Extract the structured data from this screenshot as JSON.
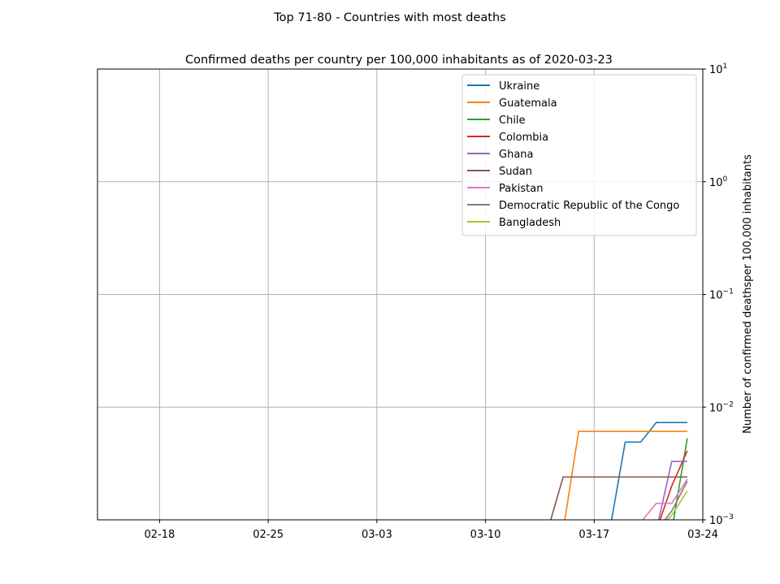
{
  "figure": {
    "suptitle": "Top 71-80 - Countries with most deaths"
  },
  "chart_data": {
    "type": "line",
    "title": "Confirmed deaths per country per 100,000 inhabitants as of 2020-03-23",
    "xlabel": "",
    "ylabel": "Number of confirmed deathsper 100,000 inhabitants",
    "y_scale": "log",
    "y_axis_side": "right",
    "xlim": [
      "2020-02-14",
      "2020-03-24"
    ],
    "ylim": [
      0.001,
      10
    ],
    "x_ticks": [
      {
        "date": "2020-02-18",
        "label": "02-18"
      },
      {
        "date": "2020-02-25",
        "label": "02-25"
      },
      {
        "date": "2020-03-03",
        "label": "03-03"
      },
      {
        "date": "2020-03-10",
        "label": "03-10"
      },
      {
        "date": "2020-03-17",
        "label": "03-17"
      },
      {
        "date": "2020-03-24",
        "label": "03-24"
      }
    ],
    "y_ticks": [
      {
        "value": 0.001,
        "base": "10",
        "exp": "−3"
      },
      {
        "value": 0.01,
        "base": "10",
        "exp": "−2"
      },
      {
        "value": 0.1,
        "base": "10",
        "exp": "−1"
      },
      {
        "value": 1,
        "base": "10",
        "exp": "0"
      },
      {
        "value": 10,
        "base": "10",
        "exp": "1"
      }
    ],
    "grid": true,
    "legend_position": "top-right",
    "series": [
      {
        "name": "Ukraine",
        "color": "#1f77b4",
        "points": [
          {
            "x": "2020-03-18",
            "y": 0.0008
          },
          {
            "x": "2020-03-19",
            "y": 0.0049
          },
          {
            "x": "2020-03-20",
            "y": 0.0049
          },
          {
            "x": "2020-03-21",
            "y": 0.0073
          },
          {
            "x": "2020-03-22",
            "y": 0.0073
          },
          {
            "x": "2020-03-23",
            "y": 0.0073
          }
        ]
      },
      {
        "name": "Guatemala",
        "color": "#ff7f0e",
        "points": [
          {
            "x": "2020-03-15",
            "y": 0.0008
          },
          {
            "x": "2020-03-16",
            "y": 0.0061
          },
          {
            "x": "2020-03-23",
            "y": 0.0061
          }
        ]
      },
      {
        "name": "Chile",
        "color": "#2ca02c",
        "points": [
          {
            "x": "2020-03-22",
            "y": 0.0008
          },
          {
            "x": "2020-03-23",
            "y": 0.0053
          }
        ]
      },
      {
        "name": "Colombia",
        "color": "#d62728",
        "points": [
          {
            "x": "2020-03-21",
            "y": 0.0008
          },
          {
            "x": "2020-03-22",
            "y": 0.002
          },
          {
            "x": "2020-03-23",
            "y": 0.0041
          }
        ]
      },
      {
        "name": "Ghana",
        "color": "#9467bd",
        "points": [
          {
            "x": "2020-03-21",
            "y": 0.0008
          },
          {
            "x": "2020-03-22",
            "y": 0.0033
          },
          {
            "x": "2020-03-23",
            "y": 0.0033
          }
        ]
      },
      {
        "name": "Sudan",
        "color": "#8c564b",
        "points": [
          {
            "x": "2020-03-14",
            "y": 0.0008
          },
          {
            "x": "2020-03-15",
            "y": 0.0024
          },
          {
            "x": "2020-03-23",
            "y": 0.0024
          }
        ]
      },
      {
        "name": "Pakistan",
        "color": "#e377c2",
        "points": [
          {
            "x": "2020-03-19",
            "y": 0.0008
          },
          {
            "x": "2020-03-20",
            "y": 0.00095
          },
          {
            "x": "2020-03-21",
            "y": 0.0014
          },
          {
            "x": "2020-03-22",
            "y": 0.0014
          },
          {
            "x": "2020-03-23",
            "y": 0.0023
          }
        ]
      },
      {
        "name": "Democratic Republic of the Congo",
        "color": "#7f7f7f",
        "points": [
          {
            "x": "2020-03-21",
            "y": 0.0008
          },
          {
            "x": "2020-03-22",
            "y": 0.0012
          },
          {
            "x": "2020-03-23",
            "y": 0.0022
          }
        ]
      },
      {
        "name": "Bangladesh",
        "color": "#bcbd22",
        "points": [
          {
            "x": "2020-03-21",
            "y": 0.0008
          },
          {
            "x": "2020-03-22",
            "y": 0.0011
          },
          {
            "x": "2020-03-23",
            "y": 0.0018
          }
        ]
      }
    ]
  }
}
